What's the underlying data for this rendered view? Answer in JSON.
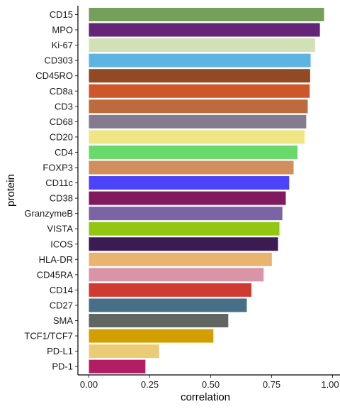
{
  "chart_data": {
    "type": "bar",
    "orientation": "horizontal",
    "xlabel": "correlation",
    "ylabel": "protein",
    "xlim": [
      0,
      1
    ],
    "x_ticks": [
      0,
      0.25,
      0.5,
      0.75,
      1
    ],
    "x_tick_labels": [
      "0.00",
      "0.25",
      "0.50",
      "0.75",
      "1.00"
    ],
    "grid": false,
    "legend": "none",
    "categories": [
      "CD15",
      "MPO",
      "Ki-67",
      "CD303",
      "CD45RO",
      "CD8a",
      "CD3",
      "CD68",
      "CD20",
      "CD4",
      "FOXP3",
      "CD11c",
      "CD38",
      "GranzymeB",
      "VISTA",
      "ICOS",
      "HLA-DR",
      "CD45RA",
      "CD14",
      "CD27",
      "SMA",
      "TCF1/TCF7",
      "PD-L1",
      "PD-1"
    ],
    "values": [
      0.965,
      0.948,
      0.928,
      0.91,
      0.908,
      0.906,
      0.898,
      0.892,
      0.885,
      0.856,
      0.84,
      0.822,
      0.808,
      0.794,
      0.782,
      0.776,
      0.751,
      0.717,
      0.667,
      0.648,
      0.572,
      0.511,
      0.288,
      0.232
    ],
    "colors": [
      "#769F5B",
      "#642478",
      "#D1E1B5",
      "#5EB4E0",
      "#924A26",
      "#CD562A",
      "#BD6A3D",
      "#857B8F",
      "#EEE585",
      "#69D96A",
      "#D28E5C",
      "#4D43F9",
      "#81195F",
      "#7A64A6",
      "#92C711",
      "#3B1B52",
      "#E9B46E",
      "#D994A7",
      "#CF3B31",
      "#476F88",
      "#5F6760",
      "#D39F00",
      "#ECCB77",
      "#B31D64"
    ]
  }
}
